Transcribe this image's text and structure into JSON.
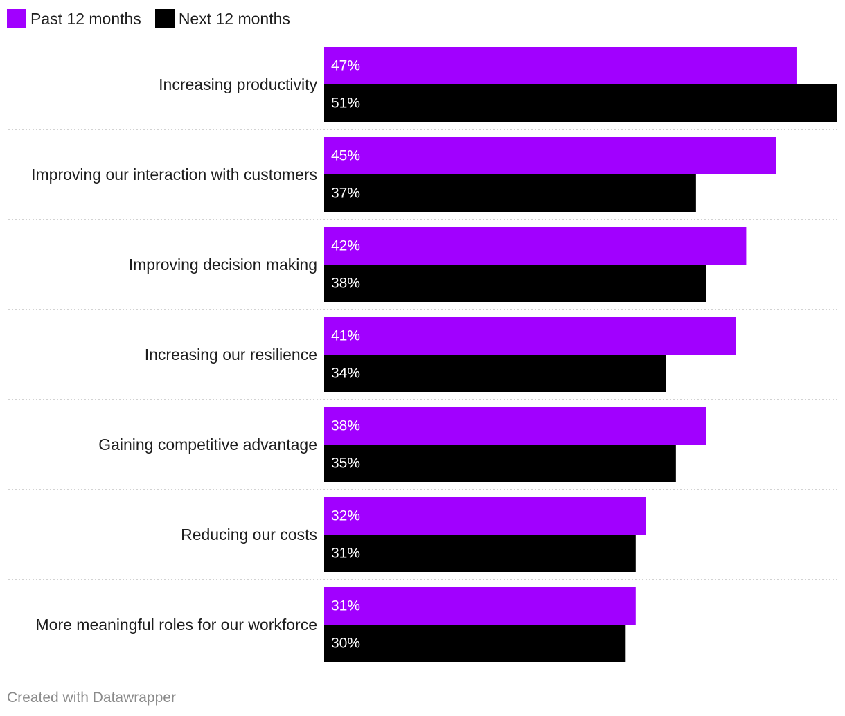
{
  "chart_data": {
    "type": "bar",
    "orientation": "horizontal",
    "categories": [
      "Increasing productivity",
      "Improving our interaction with customers",
      "Improving decision making",
      "Increasing our resilience",
      "Gaining competitive advantage",
      "Reducing our costs",
      "More meaningful roles for our workforce"
    ],
    "series": [
      {
        "name": "Past 12 months",
        "color": "#a100ff",
        "values": [
          47,
          45,
          42,
          41,
          38,
          32,
          31
        ]
      },
      {
        "name": "Next 12 months",
        "color": "#000000",
        "values": [
          51,
          37,
          38,
          34,
          35,
          31,
          30
        ]
      }
    ],
    "value_suffix": "%",
    "xlim": [
      0,
      51
    ],
    "legend_position": "top-left",
    "grid": false
  },
  "footer": {
    "credit": "Created with Datawrapper"
  }
}
